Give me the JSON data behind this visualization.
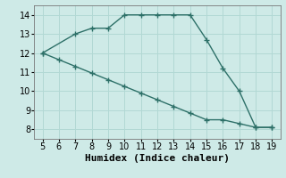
{
  "xlabel": "Humidex (Indice chaleur)",
  "bg_color": "#ceeae7",
  "grid_color": "#b2d8d4",
  "line_color": "#2d7068",
  "x_line1": [
    5,
    7,
    8,
    9,
    10,
    11,
    12,
    13,
    14,
    15,
    16,
    17,
    18,
    19
  ],
  "y_line1": [
    12,
    13,
    13.3,
    13.3,
    14,
    14,
    14,
    14,
    14,
    12.7,
    11.2,
    10.0,
    8.1,
    8.1
  ],
  "x_line2": [
    5,
    6,
    7,
    8,
    9,
    10,
    11,
    12,
    13,
    14,
    15,
    16,
    17,
    18,
    19
  ],
  "y_line2": [
    12.0,
    11.65,
    11.3,
    10.95,
    10.6,
    10.25,
    9.9,
    9.55,
    9.2,
    8.85,
    8.5,
    8.5,
    8.3,
    8.1,
    8.1
  ],
  "xlim": [
    4.5,
    19.5
  ],
  "ylim": [
    7.5,
    14.5
  ],
  "xticks": [
    5,
    6,
    7,
    8,
    9,
    10,
    11,
    12,
    13,
    14,
    15,
    16,
    17,
    18,
    19
  ],
  "yticks": [
    8,
    9,
    10,
    11,
    12,
    13,
    14
  ],
  "marker": "+",
  "markersize": 4,
  "markeredgewidth": 1.0,
  "linewidth": 1.0,
  "xlabel_fontsize": 8,
  "tick_fontsize": 7
}
